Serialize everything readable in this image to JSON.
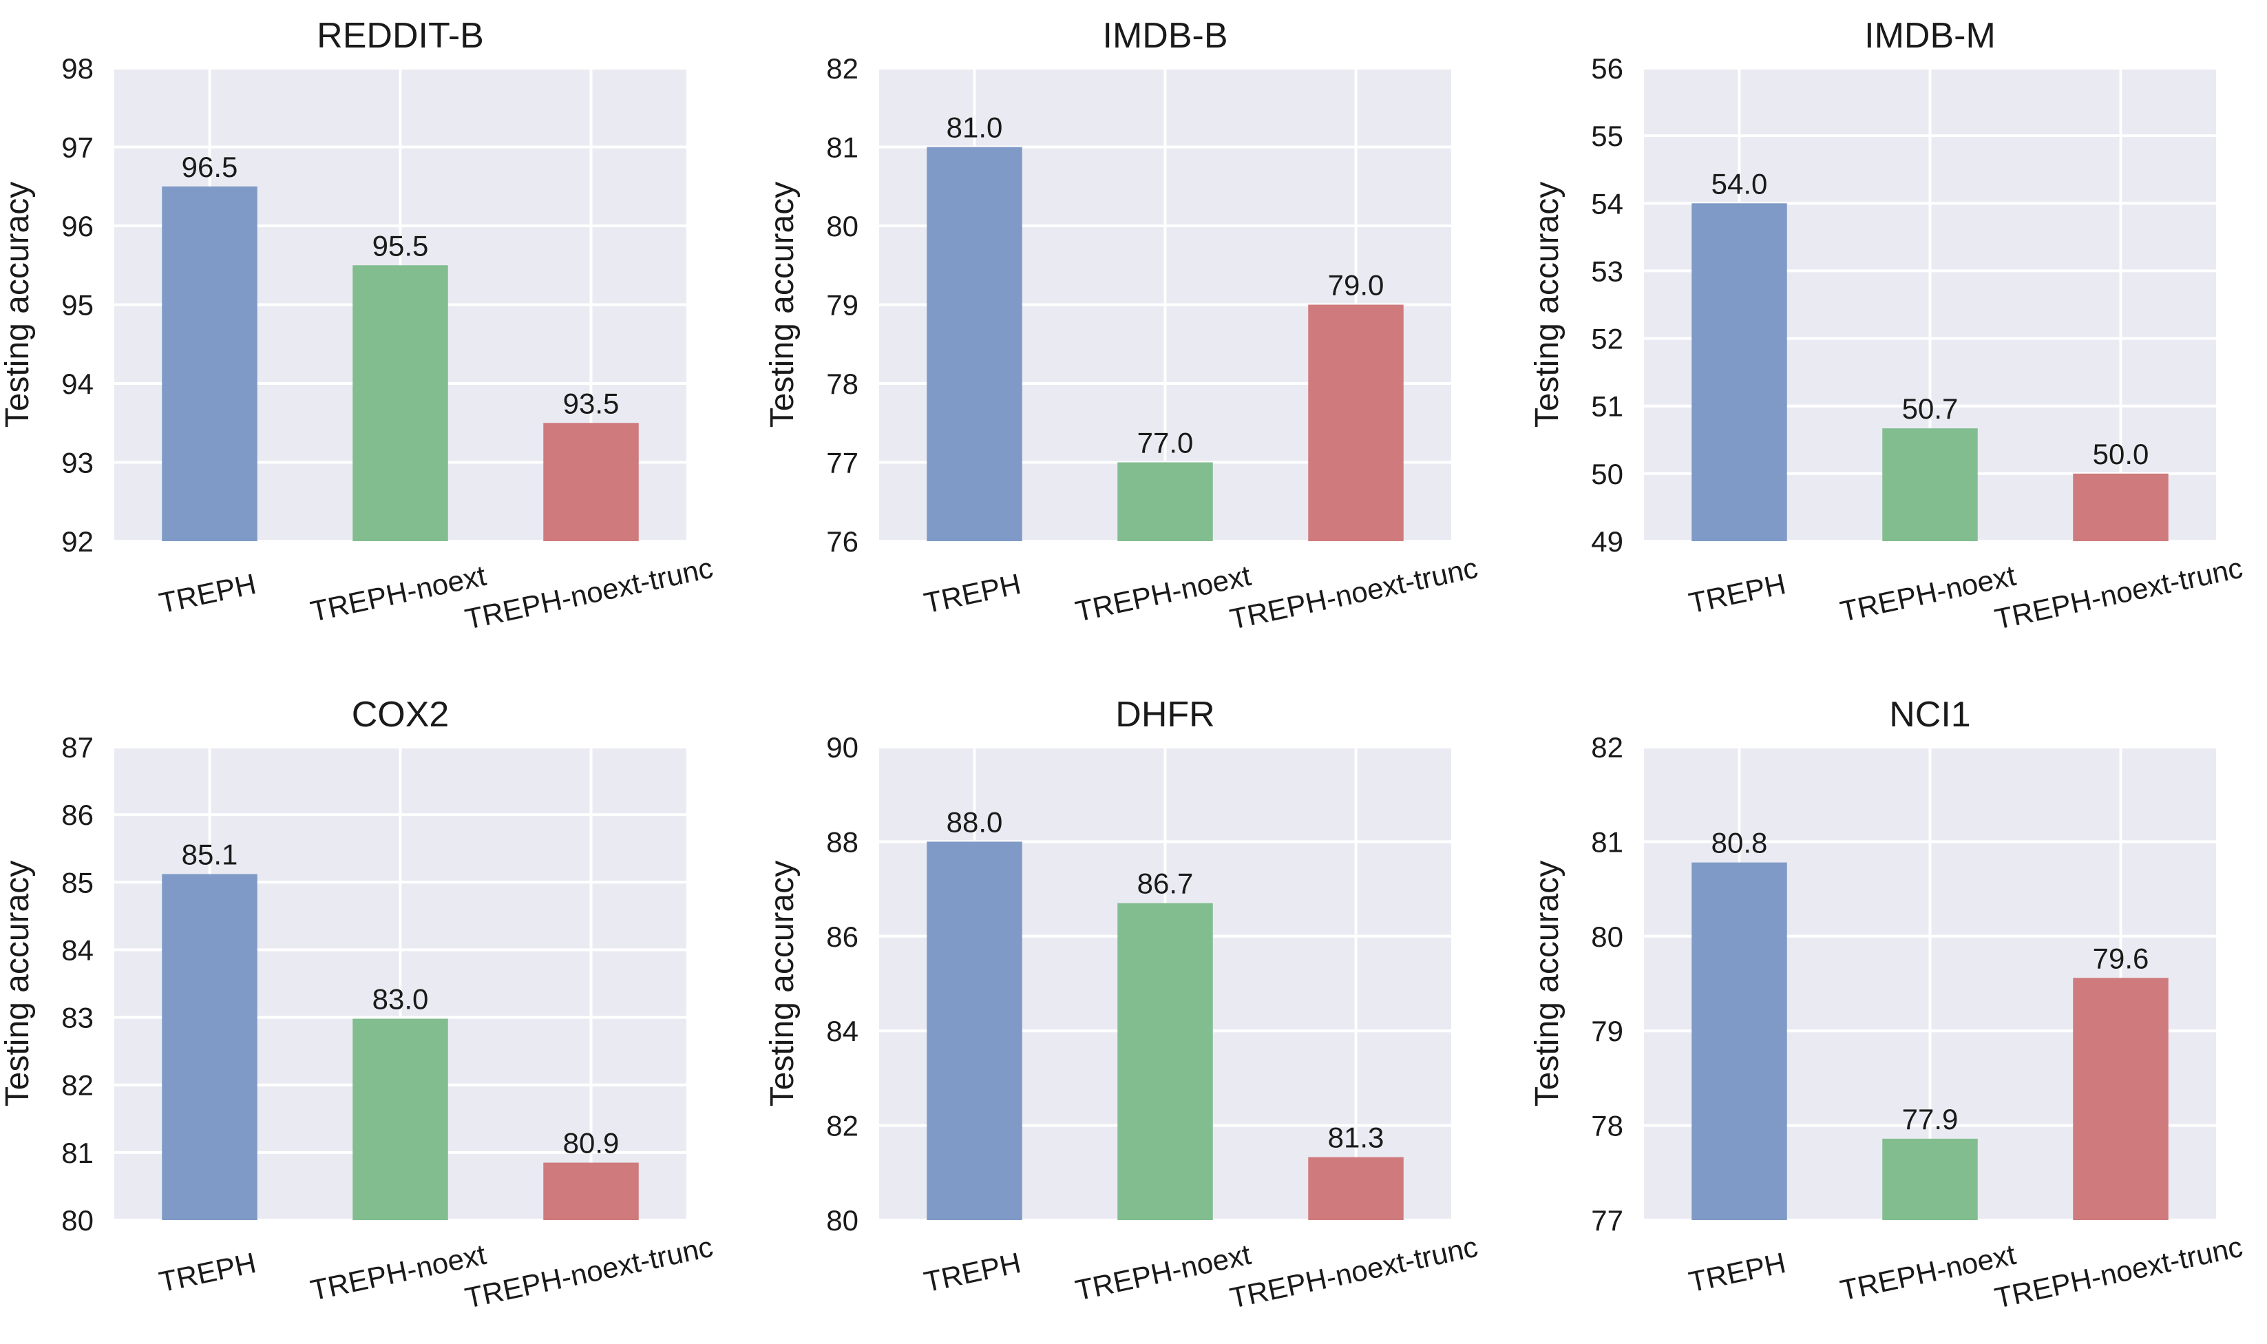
{
  "figure": {
    "colors": {
      "background": "#eaeaf2",
      "grid": "#ffffff",
      "series": [
        "#7f9ac6",
        "#82bd8f",
        "#cf7a7c"
      ]
    }
  },
  "chart_data": [
    {
      "type": "bar",
      "title": "REDDIT-B",
      "categories": [
        "TREPH",
        "TREPH-noext",
        "TREPH-noext-trunc"
      ],
      "values": [
        96.5,
        95.5,
        93.5
      ],
      "value_labels": [
        "96.5",
        "95.5",
        "93.5"
      ],
      "xlabel": "",
      "ylabel": "Testing accuracy",
      "ylim": [
        92,
        98
      ],
      "yticks": [
        92,
        93,
        94,
        95,
        96,
        97,
        98
      ],
      "grid": true
    },
    {
      "type": "bar",
      "title": "IMDB-B",
      "categories": [
        "TREPH",
        "TREPH-noext",
        "TREPH-noext-trunc"
      ],
      "values": [
        81.0,
        77.0,
        79.0
      ],
      "value_labels": [
        "81.0",
        "77.0",
        "79.0"
      ],
      "xlabel": "",
      "ylabel": "Testing accuracy",
      "ylim": [
        76,
        82
      ],
      "yticks": [
        76,
        77,
        78,
        79,
        80,
        81,
        82
      ],
      "grid": true
    },
    {
      "type": "bar",
      "title": "IMDB-M",
      "categories": [
        "TREPH",
        "TREPH-noext",
        "TREPH-noext-trunc"
      ],
      "values": [
        54.0,
        50.67,
        50.0
      ],
      "value_labels": [
        "54.0",
        "50.7",
        "50.0"
      ],
      "xlabel": "",
      "ylabel": "Testing accuracy",
      "ylim": [
        49,
        56
      ],
      "yticks": [
        49,
        50,
        51,
        52,
        53,
        54,
        55,
        56
      ],
      "grid": true
    },
    {
      "type": "bar",
      "title": "COX2",
      "categories": [
        "TREPH",
        "TREPH-noext",
        "TREPH-noext-trunc"
      ],
      "values": [
        85.12,
        82.98,
        80.85
      ],
      "value_labels": [
        "85.1",
        "83.0",
        "80.9"
      ],
      "xlabel": "",
      "ylabel": "Testing accuracy",
      "ylim": [
        80,
        87
      ],
      "yticks": [
        80,
        81,
        82,
        83,
        84,
        85,
        86,
        87
      ],
      "grid": true
    },
    {
      "type": "bar",
      "title": "DHFR",
      "categories": [
        "TREPH",
        "TREPH-noext",
        "TREPH-noext-trunc"
      ],
      "values": [
        88.0,
        86.7,
        81.33
      ],
      "value_labels": [
        "88.0",
        "86.7",
        "81.3"
      ],
      "xlabel": "",
      "ylabel": "Testing accuracy",
      "ylim": [
        80,
        90
      ],
      "yticks": [
        80,
        82,
        84,
        86,
        88,
        90
      ],
      "grid": true
    },
    {
      "type": "bar",
      "title": "NCI1",
      "categories": [
        "TREPH",
        "TREPH-noext",
        "TREPH-noext-trunc"
      ],
      "values": [
        80.78,
        77.86,
        79.56
      ],
      "value_labels": [
        "80.8",
        "77.9",
        "79.6"
      ],
      "xlabel": "",
      "ylabel": "Testing accuracy",
      "ylim": [
        77,
        82
      ],
      "yticks": [
        77,
        78,
        79,
        80,
        81,
        82
      ],
      "grid": true
    }
  ]
}
